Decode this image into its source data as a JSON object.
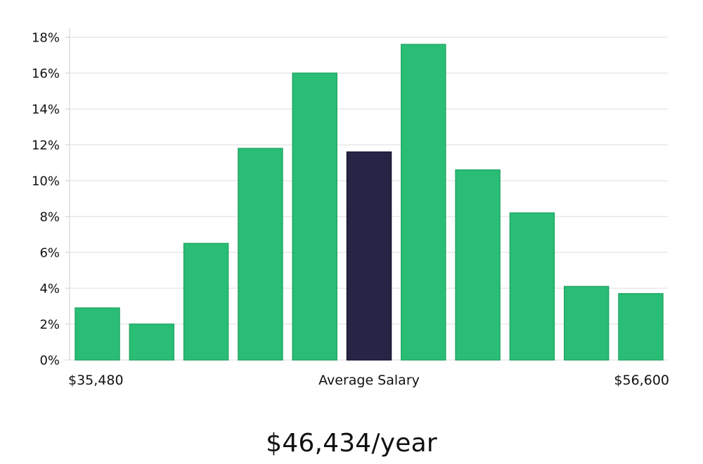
{
  "chart_data": {
    "type": "bar",
    "title": "",
    "xlabel": "Average Salary",
    "ylabel": "",
    "ylim": [
      0,
      18
    ],
    "y_ticks": [
      0,
      2,
      4,
      6,
      8,
      10,
      12,
      14,
      16,
      18
    ],
    "y_tick_suffix": "%",
    "grid": true,
    "x_range_labels": {
      "min": "$35,480",
      "max": "$56,600"
    },
    "bins": 11,
    "values": [
      2.9,
      2.0,
      6.5,
      11.8,
      16.0,
      11.6,
      17.6,
      10.6,
      8.2,
      4.1,
      3.7
    ],
    "highlight_index": 5,
    "colors": {
      "bar": "#2abd76",
      "bar_edge": "#22a864",
      "highlight": "#272445",
      "highlight_edge": "#161430",
      "grid": "#dcdcdc",
      "axis": "#cccccc"
    }
  },
  "summary": {
    "salary_text": "$46,434/year"
  }
}
